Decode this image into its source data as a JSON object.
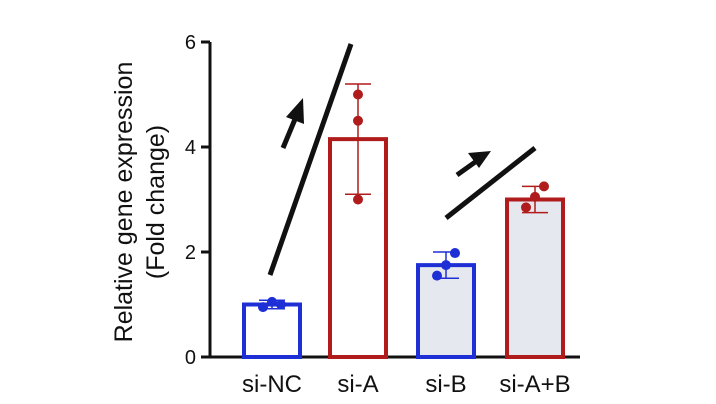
{
  "chart_data": {
    "type": "bar",
    "title": "",
    "xlabel": "",
    "ylabel_line1": "Relative gene expression",
    "ylabel_line2": "(Fold change)",
    "ylim": [
      0,
      6
    ],
    "yticks": [
      0,
      2,
      4,
      6
    ],
    "categories": [
      "si-NC",
      "si-A",
      "si-B",
      "si-A+B"
    ],
    "values": [
      1.0,
      4.15,
      1.75,
      3.0
    ],
    "errors": [
      0.08,
      1.05,
      0.25,
      0.25
    ],
    "points": [
      [
        0.95,
        1.05,
        1.0
      ],
      [
        3.0,
        4.5,
        5.0
      ],
      [
        1.55,
        1.75,
        1.98
      ],
      [
        2.85,
        3.05,
        3.25
      ]
    ],
    "bar_fill": [
      "#ffffff",
      "#ffffff",
      "#e6e8ef",
      "#e6e8ef"
    ],
    "bar_colors": [
      "#1f2fd6",
      "#b01c1c",
      "#1f2fd6",
      "#b01c1c"
    ],
    "point_colors": [
      "#1f2fd6",
      "#b01c1c",
      "#1f2fd6",
      "#b01c1c"
    ],
    "grid": false,
    "legend": "none",
    "annotations": [
      {
        "type": "arrow-up",
        "between": [
          "si-NC",
          "si-A"
        ]
      },
      {
        "type": "arrow-up",
        "between": [
          "si-B",
          "si-A+B"
        ]
      }
    ]
  }
}
